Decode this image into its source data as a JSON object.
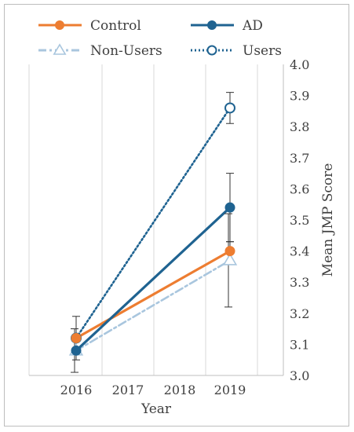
{
  "chart_data": {
    "type": "line",
    "xlabel": "Year",
    "ylabel": "Mean JMP Score",
    "ylim": [
      3.0,
      4.0
    ],
    "y_ticks": [
      "3.0",
      "3.1",
      "3.2",
      "3.3",
      "3.4",
      "3.5",
      "3.6",
      "3.7",
      "3.8",
      "3.9",
      "4.0"
    ],
    "x": [
      2016,
      2017,
      2018,
      2019
    ],
    "x_ticks": [
      "2016",
      "2017",
      "2018",
      "2019"
    ],
    "y_axis_side": "right",
    "grid": "vertical",
    "legend_position": "top",
    "series": [
      {
        "name": "Control",
        "color": "#ED7D31",
        "style": "solid",
        "marker": "filled-circle",
        "points": [
          {
            "x": 2016,
            "y": 3.12
          },
          {
            "x": 2019,
            "y": 3.4
          }
        ],
        "error": [
          null,
          0.03
        ]
      },
      {
        "name": "AD",
        "color": "#1F6391",
        "style": "solid",
        "marker": "filled-circle",
        "points": [
          {
            "x": 2016,
            "y": 3.08
          },
          {
            "x": 2019,
            "y": 3.54
          }
        ],
        "error": [
          null,
          0.11
        ]
      },
      {
        "name": "Non-Users",
        "color": "#A9C6DE",
        "style": "dash-dot",
        "marker": "open-triangle",
        "points": [
          {
            "x": 2016,
            "y": 3.08
          },
          {
            "x": 2019,
            "y": 3.37
          }
        ],
        "error": [
          0.07,
          0.15
        ]
      },
      {
        "name": "Users",
        "color": "#1F6391",
        "style": "dotted",
        "marker": "open-circle",
        "points": [
          {
            "x": 2016,
            "y": 3.12
          },
          {
            "x": 2019,
            "y": 3.86
          }
        ],
        "error": [
          0.07,
          0.05
        ]
      }
    ]
  }
}
